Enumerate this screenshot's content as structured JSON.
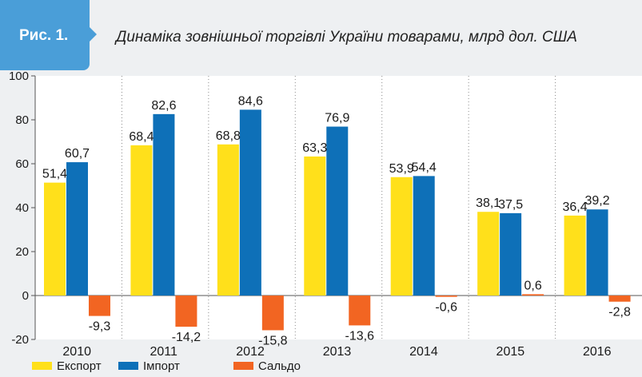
{
  "figure": {
    "badge": "Рис. 1.",
    "title": "Динаміка зовнішньої торгівлі України товарами, млрд дол. США"
  },
  "colors": {
    "export": "#ffe01b",
    "import": "#0e70b8",
    "saldo": "#f26522",
    "badge": "#4a9ed8",
    "background": "#eef0f2"
  },
  "chart_data": {
    "type": "bar",
    "title": "Динаміка зовнішньої торгівлі України товарами, млрд дол. США",
    "xlabel": "",
    "ylabel": "",
    "categories": [
      "2010",
      "2011",
      "2012",
      "2013",
      "2014",
      "2015",
      "2016"
    ],
    "series": [
      {
        "name": "Експорт",
        "values": [
          51.4,
          68.4,
          68.8,
          63.3,
          53.9,
          38.1,
          36.4
        ],
        "labels": [
          "51,4",
          "68,4",
          "68,8",
          "63,3",
          "53,9",
          "38,1",
          "36,4"
        ]
      },
      {
        "name": "Імпорт",
        "values": [
          60.7,
          82.6,
          84.6,
          76.9,
          54.4,
          37.5,
          39.2
        ],
        "labels": [
          "60,7",
          "82,6",
          "84,6",
          "76,9",
          "54,4",
          "37,5",
          "39,2"
        ]
      },
      {
        "name": "Сальдо",
        "values": [
          -9.3,
          -14.2,
          -15.8,
          -13.6,
          -0.6,
          0.6,
          -2.8
        ],
        "labels": [
          "-9,3",
          "-14,2",
          "-15,8",
          "-13,6",
          "-0,6",
          "0,6",
          "-2,8"
        ]
      }
    ],
    "ylim": [
      -20,
      100
    ],
    "yticks": [
      -20,
      0,
      20,
      40,
      60,
      80,
      100
    ],
    "grid": "vertical dotted between categories",
    "legend": "bottom-left"
  }
}
